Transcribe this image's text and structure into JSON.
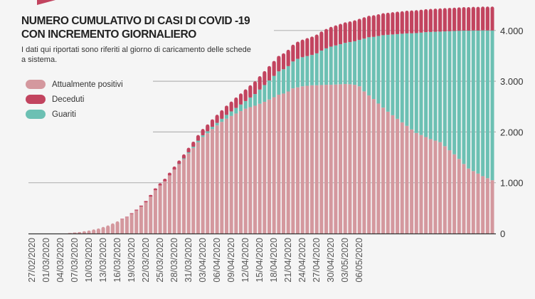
{
  "chart_data": {
    "type": "bar",
    "stacked": true,
    "title": "NUMERO CUMULATIVO DI CASI DI COVID -19 CON INCREMENTO GIORNALIERO",
    "title_lines": [
      "NUMERO CUMULATIVO DI CASI DI COVID -19",
      "CON INCREMENTO GIORNALIERO"
    ],
    "subtitle": "I dati qui riportati sono riferiti al giorno di caricamento delle schede a sistema.",
    "ylim": [
      0,
      4500
    ],
    "y_ticks": [
      0,
      1000,
      2000,
      3000,
      4000
    ],
    "y_tick_labels": [
      "0",
      "1.000",
      "2.000",
      "3.000",
      "4.000"
    ],
    "y_axis_position": "right",
    "grid": true,
    "legend_placement": "top-left",
    "x_tick_labels": [
      "27/02/2020",
      "01/03/2020",
      "04/03/2020",
      "07/03/2020",
      "10/03/2020",
      "13/03/2020",
      "16/03/2020",
      "19/03/2020",
      "22/03/2020",
      "25/03/2020",
      "28/03/2020",
      "31/03/2020",
      "03/04/2020",
      "06/04/2020",
      "09/04/2020",
      "12/04/2020",
      "15/04/2020",
      "18/04/2020",
      "21/04/2020",
      "24/04/2020",
      "27/04/2020",
      "30/04/2020",
      "03/05/2020",
      "06/05/2020"
    ],
    "categories": [
      "27/02/2020",
      "28/02/2020",
      "29/02/2020",
      "01/03/2020",
      "02/03/2020",
      "03/03/2020",
      "04/03/2020",
      "05/03/2020",
      "06/03/2020",
      "07/03/2020",
      "08/03/2020",
      "09/03/2020",
      "10/03/2020",
      "11/03/2020",
      "12/03/2020",
      "13/03/2020",
      "14/03/2020",
      "15/03/2020",
      "16/03/2020",
      "17/03/2020",
      "18/03/2020",
      "19/03/2020",
      "20/03/2020",
      "21/03/2020",
      "22/03/2020",
      "23/03/2020",
      "24/03/2020",
      "25/03/2020",
      "26/03/2020",
      "27/03/2020",
      "28/03/2020",
      "29/03/2020",
      "30/03/2020",
      "31/03/2020",
      "01/04/2020",
      "02/04/2020",
      "03/04/2020",
      "04/04/2020",
      "05/04/2020",
      "06/04/2020",
      "07/04/2020",
      "08/04/2020",
      "09/04/2020",
      "10/04/2020",
      "11/04/2020",
      "12/04/2020",
      "13/04/2020",
      "14/04/2020",
      "15/04/2020",
      "16/04/2020",
      "17/04/2020",
      "18/04/2020",
      "19/04/2020",
      "20/04/2020",
      "21/04/2020",
      "22/04/2020",
      "23/04/2020",
      "24/04/2020",
      "25/04/2020",
      "26/04/2020",
      "27/04/2020",
      "28/04/2020",
      "29/04/2020",
      "30/04/2020",
      "01/05/2020",
      "02/05/2020",
      "03/05/2020",
      "04/05/2020",
      "05/05/2020",
      "06/05/2020",
      "07/05/2020",
      "08/05/2020",
      "09/05/2020",
      "10/05/2020",
      "11/05/2020",
      "12/05/2020",
      "13/05/2020",
      "14/05/2020",
      "15/05/2020",
      "16/05/2020",
      "17/05/2020",
      "18/05/2020",
      "19/05/2020",
      "20/05/2020",
      "21/05/2020",
      "22/05/2020",
      "23/05/2020",
      "24/05/2020",
      "25/05/2020",
      "26/05/2020",
      "27/05/2020",
      "28/05/2020",
      "29/05/2020",
      "30/05/2020",
      "31/05/2020",
      "01/06/2020",
      "02/06/2020",
      "03/06/2020"
    ],
    "series": [
      {
        "name": "Attualmente positivi",
        "color": "#d4989e",
        "values": [
          0,
          0,
          0,
          0,
          0,
          0,
          0,
          0,
          10,
          20,
          30,
          45,
          60,
          80,
          100,
          130,
          160,
          200,
          240,
          285,
          320,
          386,
          452,
          528,
          613,
          728,
          853,
          947,
          1031,
          1145,
          1260,
          1360,
          1465,
          1580,
          1685,
          1798,
          1901,
          1974,
          2057,
          2130,
          2200,
          2263,
          2316,
          2364,
          2412,
          2460,
          2490,
          2518,
          2556,
          2595,
          2640,
          2685,
          2735,
          2757,
          2798,
          2860,
          2880,
          2900,
          2910,
          2920,
          2920,
          2925,
          2930,
          2930,
          2935,
          2940,
          2945,
          2940,
          2930,
          2900,
          2800,
          2720,
          2650,
          2560,
          2480,
          2400,
          2330,
          2260,
          2190,
          2120,
          2050,
          1980,
          1940,
          1900,
          1860,
          1830,
          1800,
          1720,
          1640,
          1560,
          1470,
          1370,
          1280,
          1230,
          1180,
          1130,
          1090,
          1050
        ]
      },
      {
        "name": "Guariti",
        "color": "#6cc0b3",
        "values": [
          0,
          0,
          0,
          0,
          0,
          0,
          0,
          0,
          0,
          0,
          0,
          0,
          0,
          0,
          0,
          0,
          0,
          0,
          0,
          0,
          0,
          0,
          0,
          0,
          0,
          0,
          0,
          0,
          0,
          0,
          0,
          10,
          15,
          20,
          25,
          30,
          35,
          40,
          45,
          50,
          60,
          75,
          90,
          110,
          130,
          150,
          190,
          230,
          280,
          330,
          375,
          420,
          460,
          480,
          500,
          530,
          562,
          574,
          586,
          598,
          630,
          679,
          718,
          752,
          771,
          790,
          811,
          832,
          858,
          914,
          1040,
          1147,
          1224,
          1331,
          1428,
          1515,
          1592,
          1669,
          1746,
          1823,
          1895,
          1969,
          2018,
          2067,
          2111,
          2145,
          2178,
          2262,
          2346,
          2430,
          2524,
          2627,
          2716,
          2770,
          2819,
          2872,
          2911,
          2950
        ]
      },
      {
        "name": "Deceduti",
        "color": "#c2445f",
        "values": [
          0,
          0,
          0,
          0,
          0,
          0,
          0,
          0,
          0,
          0,
          0,
          0,
          0,
          0,
          0,
          0,
          0,
          0,
          0,
          5,
          10,
          14,
          18,
          22,
          27,
          32,
          37,
          43,
          49,
          55,
          60,
          70,
          80,
          90,
          100,
          112,
          124,
          136,
          148,
          160,
          170,
          182,
          194,
          206,
          218,
          230,
          240,
          252,
          264,
          275,
          285,
          295,
          305,
          313,
          322,
          330,
          338,
          346,
          354,
          362,
          370,
          376,
          382,
          388,
          394,
          400,
          404,
          408,
          412,
          416,
          420,
          423,
          426,
          429,
          432,
          435,
          438,
          441,
          444,
          447,
          450,
          451,
          452,
          453,
          454,
          455,
          457,
          458,
          459,
          460,
          461,
          463,
          464,
          465,
          466,
          468,
          469,
          470
        ]
      }
    ]
  },
  "legend": [
    {
      "label": "Attualmente positivi",
      "color": "#d4989e"
    },
    {
      "label": "Deceduti",
      "color": "#c2445f"
    },
    {
      "label": "Guariti",
      "color": "#6cc0b3"
    }
  ],
  "colors": {
    "background": "#f5f5f5",
    "grid": "#b5b5b5",
    "accent": "#c2445f"
  }
}
